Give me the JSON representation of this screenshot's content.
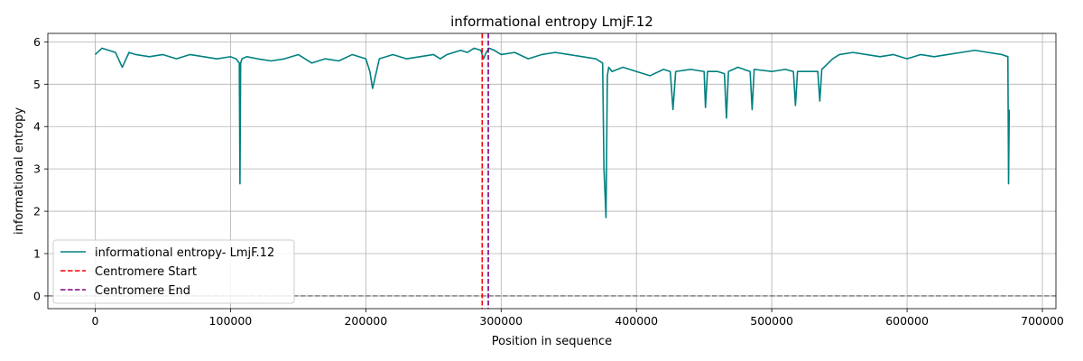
{
  "chart_data": {
    "type": "line",
    "title": "informational entropy LmjF.12",
    "xlabel": "Position in sequence",
    "ylabel": "informational entropy",
    "xlim": [
      -35000,
      710000
    ],
    "ylim": [
      -0.3,
      6.2
    ],
    "xticks": [
      0,
      100000,
      200000,
      300000,
      400000,
      500000,
      600000,
      700000
    ],
    "yticks": [
      0,
      1,
      2,
      3,
      4,
      5,
      6
    ],
    "grid": true,
    "legend_position": "lower-left",
    "series": [
      {
        "name": "informational entropy- LmjF.12",
        "color": "#008080",
        "style": "solid",
        "x": [
          0,
          5000,
          10000,
          15000,
          20000,
          25000,
          30000,
          40000,
          50000,
          60000,
          70000,
          80000,
          90000,
          100000,
          104000,
          106500,
          107000,
          107500,
          108500,
          112000,
          120000,
          130000,
          140000,
          150000,
          160000,
          170000,
          180000,
          190000,
          200000,
          203000,
          205000,
          210000,
          220000,
          230000,
          240000,
          250000,
          255000,
          260000,
          265000,
          270000,
          275000,
          280000,
          285000,
          287000,
          289000,
          291000,
          295000,
          300000,
          310000,
          320000,
          330000,
          340000,
          350000,
          360000,
          370000,
          375000,
          376000,
          377500,
          378500,
          379500,
          382000,
          390000,
          400000,
          410000,
          420000,
          425000,
          427000,
          429000,
          440000,
          450000,
          451000,
          452500,
          460000,
          465000,
          466500,
          468000,
          475000,
          484000,
          485500,
          487000,
          500000,
          510000,
          516000,
          517500,
          519000,
          530000,
          534000,
          535500,
          537000,
          545000,
          550000,
          560000,
          570000,
          580000,
          590000,
          600000,
          610000,
          620000,
          630000,
          640000,
          650000,
          660000,
          670000,
          674500,
          675000,
          675500
        ],
        "y": [
          5.7,
          5.85,
          5.8,
          5.75,
          5.4,
          5.75,
          5.7,
          5.65,
          5.7,
          5.6,
          5.7,
          5.65,
          5.6,
          5.65,
          5.6,
          5.5,
          2.65,
          5.5,
          5.6,
          5.65,
          5.6,
          5.55,
          5.6,
          5.7,
          5.5,
          5.6,
          5.55,
          5.7,
          5.6,
          5.3,
          4.9,
          5.6,
          5.7,
          5.6,
          5.65,
          5.7,
          5.6,
          5.7,
          5.75,
          5.8,
          5.75,
          5.85,
          5.8,
          5.6,
          5.75,
          5.85,
          5.8,
          5.7,
          5.75,
          5.6,
          5.7,
          5.75,
          5.7,
          5.65,
          5.6,
          5.5,
          3.0,
          1.85,
          5.2,
          5.4,
          5.3,
          5.4,
          5.3,
          5.2,
          5.35,
          5.3,
          4.4,
          5.3,
          5.35,
          5.3,
          4.45,
          5.3,
          5.3,
          5.25,
          4.2,
          5.3,
          5.4,
          5.3,
          4.4,
          5.35,
          5.3,
          5.35,
          5.3,
          4.5,
          5.3,
          5.3,
          5.3,
          4.6,
          5.35,
          5.6,
          5.7,
          5.75,
          5.7,
          5.65,
          5.7,
          5.6,
          5.7,
          5.65,
          5.7,
          5.75,
          5.8,
          5.75,
          5.7,
          5.65,
          2.65,
          4.4
        ]
      },
      {
        "name": "Centromere Start",
        "color": "#ff0000",
        "style": "dashed",
        "vline": 286000
      },
      {
        "name": "Centromere End",
        "color": "#800080",
        "style": "dashed",
        "vline": 290500
      }
    ],
    "baseline": {
      "y": 0,
      "color": "#808080",
      "style": "dashed"
    }
  }
}
